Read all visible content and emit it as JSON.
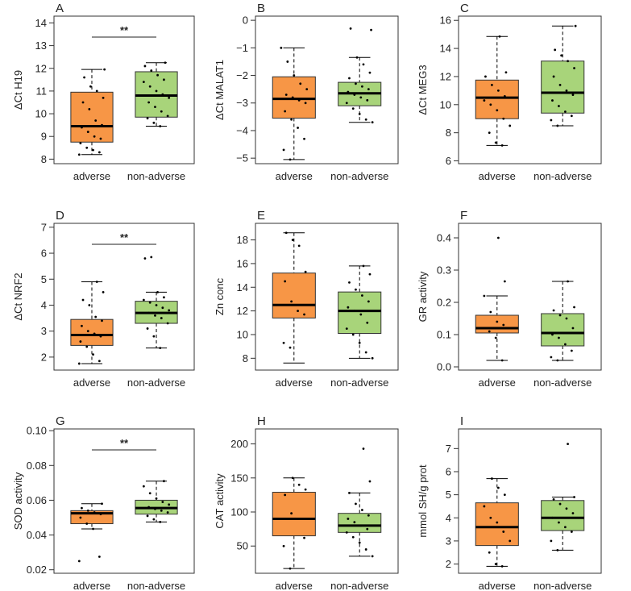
{
  "colors": {
    "adverse": "#F79646",
    "non_adverse": "#A8D47A",
    "median": "#000000",
    "points": "#000000"
  },
  "chart_data": [
    {
      "type": "box",
      "panel": "A",
      "ylabel": "ΔCt H19",
      "ylim": [
        7.8,
        14.3
      ],
      "yticks": [
        8,
        9,
        10,
        11,
        12,
        13,
        14
      ],
      "yticklabels": [
        "8",
        "9",
        "10",
        "11",
        "12",
        "13",
        "14"
      ],
      "categories": [
        "adverse",
        "non-adverse"
      ],
      "significance": "**",
      "boxes": [
        {
          "name": "adverse",
          "min": 8.2,
          "q1": 8.75,
          "median": 9.45,
          "q3": 10.95,
          "max": 11.95,
          "points": [
            8.2,
            8.3,
            8.4,
            8.5,
            8.7,
            8.9,
            9.0,
            9.2,
            9.4,
            9.5,
            9.7,
            10.2,
            10.5,
            10.7,
            11.0,
            11.2,
            11.6,
            11.95
          ]
        },
        {
          "name": "non-adverse",
          "min": 9.45,
          "q1": 9.85,
          "median": 10.8,
          "q3": 11.85,
          "max": 12.25,
          "points": [
            9.45,
            9.6,
            9.8,
            9.9,
            10.1,
            10.3,
            10.5,
            10.7,
            10.85,
            11.0,
            11.2,
            11.4,
            11.5,
            11.7,
            11.9,
            12.1,
            12.25
          ]
        }
      ]
    },
    {
      "type": "box",
      "panel": "B",
      "ylabel": "ΔCt MALAT1",
      "ylim": [
        -5.2,
        0.15
      ],
      "yticks": [
        -5,
        -4,
        -3,
        -2,
        -1,
        0
      ],
      "yticklabels": [
        "−5",
        "−4",
        "−3",
        "−2",
        "−1",
        "0"
      ],
      "categories": [
        "adverse",
        "non-adverse"
      ],
      "significance": "",
      "boxes": [
        {
          "name": "adverse",
          "min": -5.05,
          "q1": -3.55,
          "median": -2.85,
          "q3": -2.05,
          "max": -1.0,
          "points": [
            -5.05,
            -4.7,
            -4.3,
            -3.9,
            -3.6,
            -3.3,
            -3.0,
            -2.9,
            -2.8,
            -2.7,
            -2.5,
            -2.3,
            -2.0,
            -1.5,
            -1.0
          ]
        },
        {
          "name": "non-adverse",
          "min": -3.7,
          "q1": -3.1,
          "median": -2.65,
          "q3": -2.25,
          "max": -1.35,
          "points": [
            -3.7,
            -3.6,
            -3.4,
            -3.2,
            -3.0,
            -2.9,
            -2.8,
            -2.7,
            -2.6,
            -2.5,
            -2.4,
            -2.3,
            -2.1,
            -1.9,
            -1.6,
            -1.35,
            -0.3,
            -0.35
          ]
        }
      ]
    },
    {
      "type": "box",
      "panel": "C",
      "ylabel": "ΔCt MEG3",
      "ylim": [
        5.8,
        16.3
      ],
      "yticks": [
        6,
        8,
        10,
        12,
        14,
        16
      ],
      "yticklabels": [
        "6",
        "8",
        "10",
        "12",
        "14",
        "16"
      ],
      "categories": [
        "adverse",
        "non-adverse"
      ],
      "significance": "",
      "boxes": [
        {
          "name": "adverse",
          "min": 7.1,
          "q1": 9.0,
          "median": 10.5,
          "q3": 11.75,
          "max": 14.85,
          "points": [
            7.1,
            7.3,
            8.0,
            8.5,
            9.0,
            9.6,
            10.0,
            10.3,
            10.6,
            11.0,
            11.4,
            12.0,
            12.3,
            14.85
          ]
        },
        {
          "name": "non-adverse",
          "min": 8.5,
          "q1": 9.4,
          "median": 10.85,
          "q3": 13.1,
          "max": 15.6,
          "points": [
            8.5,
            8.9,
            9.2,
            9.5,
            9.9,
            10.3,
            10.7,
            11.0,
            11.4,
            12.0,
            12.6,
            13.1,
            13.5,
            13.9,
            15.6
          ]
        }
      ]
    },
    {
      "type": "box",
      "panel": "D",
      "ylabel": "ΔCt NRF2",
      "ylim": [
        1.5,
        7.15
      ],
      "yticks": [
        2,
        3,
        4,
        5,
        6,
        7
      ],
      "yticklabels": [
        "2",
        "3",
        "4",
        "5",
        "6",
        "7"
      ],
      "categories": [
        "adverse",
        "non-adverse"
      ],
      "significance": "**",
      "boxes": [
        {
          "name": "adverse",
          "min": 1.75,
          "q1": 2.45,
          "median": 2.85,
          "q3": 3.45,
          "max": 4.9,
          "points": [
            1.75,
            1.85,
            2.1,
            2.4,
            2.6,
            2.8,
            2.9,
            3.0,
            3.2,
            3.4,
            3.55,
            4.0,
            4.2,
            4.5,
            4.9
          ]
        },
        {
          "name": "non-adverse",
          "min": 2.35,
          "q1": 3.3,
          "median": 3.7,
          "q3": 4.15,
          "max": 4.5,
          "points": [
            2.35,
            2.8,
            3.1,
            3.3,
            3.5,
            3.6,
            3.7,
            3.8,
            3.9,
            4.0,
            4.1,
            4.2,
            4.3,
            4.5,
            5.85,
            5.8
          ]
        }
      ]
    },
    {
      "type": "box",
      "panel": "E",
      "ylabel": "Zn conc",
      "ylim": [
        7.0,
        19.4
      ],
      "yticks": [
        8,
        10,
        12,
        14,
        16,
        18
      ],
      "yticklabels": [
        "8",
        "10",
        "12",
        "14",
        "16",
        "18"
      ],
      "categories": [
        "adverse",
        "non-adverse"
      ],
      "significance": "",
      "boxes": [
        {
          "name": "adverse",
          "min": 7.6,
          "q1": 11.4,
          "median": 12.5,
          "q3": 15.2,
          "max": 18.6,
          "points": [
            8.9,
            9.3,
            11.7,
            12.0,
            12.8,
            14.5,
            15.3,
            17.5,
            18.0,
            18.6
          ]
        },
        {
          "name": "non-adverse",
          "min": 8.0,
          "q1": 10.1,
          "median": 12.0,
          "q3": 13.6,
          "max": 15.8,
          "points": [
            8.0,
            8.5,
            9.3,
            10.0,
            10.5,
            11.0,
            11.7,
            12.0,
            12.3,
            12.8,
            13.3,
            13.8,
            14.4,
            15.1,
            15.8
          ]
        }
      ]
    },
    {
      "type": "box",
      "panel": "F",
      "ylabel": "GR activity",
      "ylim": [
        -0.01,
        0.445
      ],
      "yticks": [
        0.0,
        0.1,
        0.2,
        0.3,
        0.4
      ],
      "yticklabels": [
        "0.0",
        "0.1",
        "0.2",
        "0.3",
        "0.4"
      ],
      "categories": [
        "adverse",
        "non-adverse"
      ],
      "significance": "",
      "boxes": [
        {
          "name": "adverse",
          "min": 0.02,
          "q1": 0.105,
          "median": 0.12,
          "q3": 0.16,
          "max": 0.22,
          "points": [
            0.02,
            0.09,
            0.11,
            0.12,
            0.13,
            0.14,
            0.17,
            0.22,
            0.265,
            0.4
          ]
        },
        {
          "name": "non-adverse",
          "min": 0.02,
          "q1": 0.065,
          "median": 0.105,
          "q3": 0.165,
          "max": 0.265,
          "points": [
            0.02,
            0.03,
            0.05,
            0.07,
            0.09,
            0.1,
            0.12,
            0.15,
            0.16,
            0.175,
            0.185,
            0.265
          ]
        }
      ]
    },
    {
      "type": "box",
      "panel": "G",
      "ylabel": "SOD activity",
      "ylim": [
        0.018,
        0.101
      ],
      "yticks": [
        0.02,
        0.04,
        0.06,
        0.08,
        0.1
      ],
      "yticklabels": [
        "0.02",
        "0.04",
        "0.06",
        "0.08",
        "0.10"
      ],
      "categories": [
        "adverse",
        "non-adverse"
      ],
      "significance": "**",
      "boxes": [
        {
          "name": "adverse",
          "min": 0.0435,
          "q1": 0.0465,
          "median": 0.0525,
          "q3": 0.054,
          "max": 0.058,
          "points": [
            0.025,
            0.0275,
            0.0435,
            0.0465,
            0.05,
            0.052,
            0.053,
            0.054,
            0.0555,
            0.058
          ]
        },
        {
          "name": "non-adverse",
          "min": 0.0475,
          "q1": 0.052,
          "median": 0.0555,
          "q3": 0.06,
          "max": 0.071,
          "points": [
            0.0475,
            0.049,
            0.051,
            0.053,
            0.054,
            0.055,
            0.056,
            0.0575,
            0.059,
            0.061,
            0.064,
            0.068,
            0.071
          ]
        }
      ]
    },
    {
      "type": "box",
      "panel": "H",
      "ylabel": "CAT activity",
      "ylim": [
        10,
        222
      ],
      "yticks": [
        50,
        100,
        150,
        200
      ],
      "yticklabels": [
        "50",
        "100",
        "150",
        "200"
      ],
      "categories": [
        "adverse",
        "non-adverse"
      ],
      "significance": "",
      "boxes": [
        {
          "name": "adverse",
          "min": 17,
          "q1": 65,
          "median": 90,
          "q3": 129,
          "max": 150,
          "points": [
            17,
            50,
            62,
            90,
            98,
            125,
            133,
            140,
            150
          ]
        },
        {
          "name": "non-adverse",
          "min": 35,
          "q1": 70,
          "median": 80,
          "q3": 98,
          "max": 128,
          "points": [
            35,
            45,
            55,
            63,
            70,
            75,
            80,
            85,
            90,
            95,
            103,
            112,
            128,
            145,
            193
          ]
        }
      ]
    },
    {
      "type": "box",
      "panel": "I",
      "ylabel": "mmol SH/g prot",
      "ylim": [
        1.6,
        7.85
      ],
      "yticks": [
        2,
        3,
        4,
        5,
        6,
        7
      ],
      "yticklabels": [
        "2",
        "3",
        "4",
        "5",
        "6",
        "7"
      ],
      "categories": [
        "adverse",
        "non-adverse"
      ],
      "significance": "",
      "boxes": [
        {
          "name": "adverse",
          "min": 1.9,
          "q1": 2.8,
          "median": 3.6,
          "q3": 4.65,
          "max": 5.7,
          "points": [
            1.9,
            2.0,
            2.5,
            3.0,
            3.4,
            3.8,
            4.0,
            4.5,
            5.0,
            5.3,
            5.7
          ]
        },
        {
          "name": "non-adverse",
          "min": 2.6,
          "q1": 3.45,
          "median": 4.0,
          "q3": 4.75,
          "max": 4.9,
          "points": [
            2.6,
            3.0,
            3.4,
            3.6,
            3.8,
            4.0,
            4.2,
            4.4,
            4.6,
            4.8,
            4.9,
            7.2
          ]
        }
      ]
    }
  ]
}
